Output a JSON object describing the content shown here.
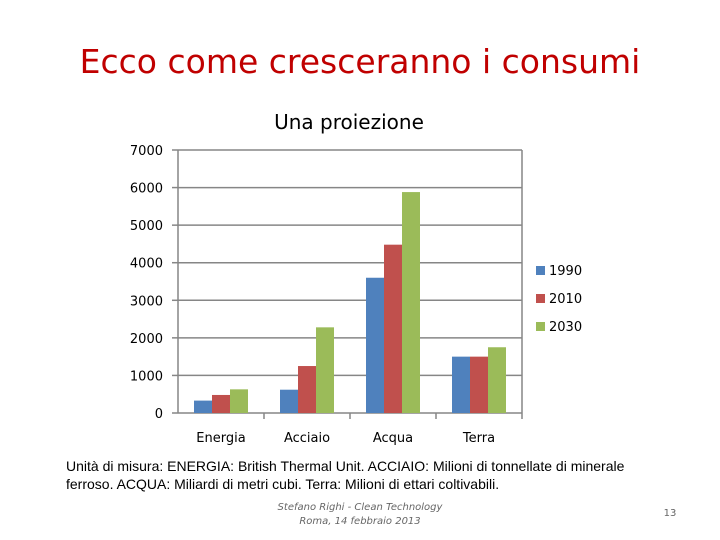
{
  "slide": {
    "title": "Ecco come cresceranno i consumi",
    "note": "Unità di misura: ENERGIA: British Thermal Unit. ACCIAIO: Milioni di tonnellate di minerale ferroso. ACQUA: Miliardi di metri cubi. Terra: Milioni di ettari coltivabili.",
    "footer_line1": "Stefano Righi - Clean Technology",
    "footer_line2": "Roma, 14 febbraio 2013",
    "page_number": "13"
  },
  "chart_data": {
    "type": "bar",
    "title": "Una proiezione",
    "xlabel": "",
    "ylabel": "",
    "categories": [
      "Energia",
      "Acciaio",
      "Acqua",
      "Terra"
    ],
    "series": [
      {
        "name": "1990",
        "color": "#4f81bd",
        "values": [
          330,
          620,
          3600,
          1500
        ]
      },
      {
        "name": "2010",
        "color": "#c0504d",
        "values": [
          480,
          1250,
          4480,
          1500
        ]
      },
      {
        "name": "2030",
        "color": "#9bbb59",
        "values": [
          630,
          2280,
          5880,
          1750
        ]
      }
    ],
    "ylim": [
      0,
      7000
    ],
    "yticks": [
      "0",
      "1000",
      "2000",
      "3000",
      "4000",
      "5000",
      "6000",
      "7000"
    ],
    "grid": true,
    "legend_position": "right"
  }
}
